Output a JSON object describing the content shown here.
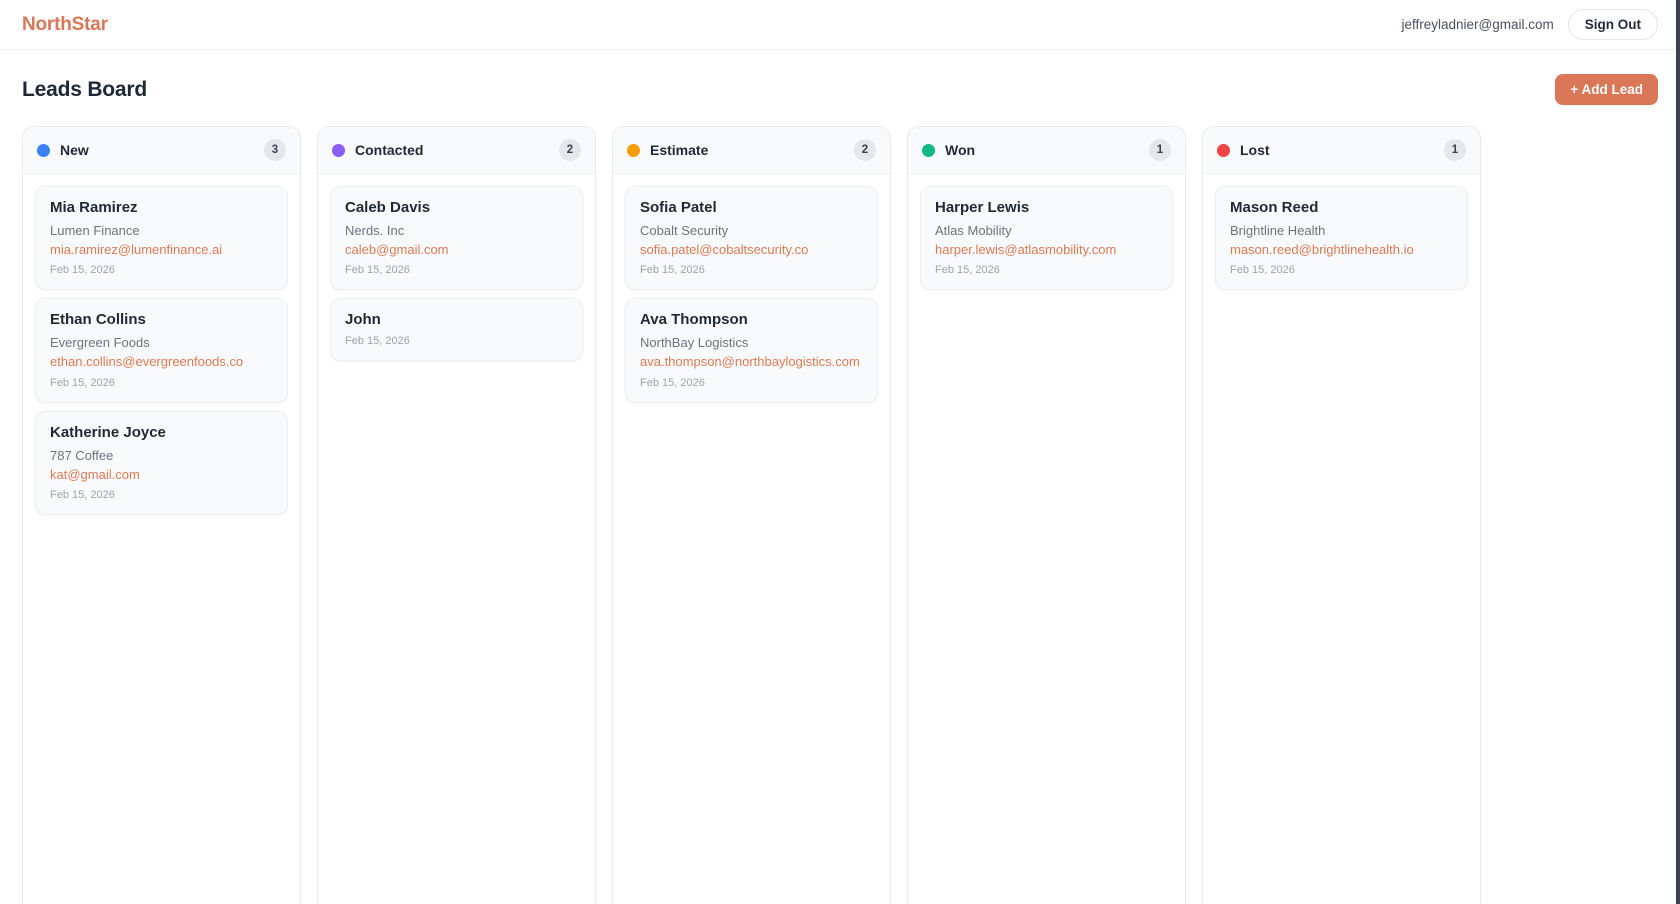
{
  "header": {
    "logo": "NorthStar",
    "user_email": "jeffreyladnier@gmail.com",
    "sign_out_label": "Sign Out"
  },
  "page": {
    "title": "Leads Board",
    "add_lead_label": "+ Add Lead"
  },
  "colors": {
    "accent": "#d97757",
    "email_link": "#dd7a54",
    "new_dot": "#3b82f6",
    "contacted_dot": "#8b5cf6",
    "estimate_dot": "#f59e0b",
    "won_dot": "#10b981",
    "lost_dot": "#ef4444",
    "badge_bg": "#e5e7eb"
  },
  "board": {
    "columns": [
      {
        "label": "New",
        "count": "3",
        "dot_color": "#3b82f6",
        "cards": [
          {
            "name": "Mia Ramirez",
            "company": "Lumen Finance",
            "email": "mia.ramirez@lumenfinance.ai",
            "date": "Feb 15, 2026"
          },
          {
            "name": "Ethan Collins",
            "company": "Evergreen Foods",
            "email": "ethan.collins@evergreenfoods.co",
            "date": "Feb 15, 2026"
          },
          {
            "name": "Katherine Joyce",
            "company": "787 Coffee",
            "email": "kat@gmail.com",
            "date": "Feb 15, 2026"
          }
        ]
      },
      {
        "label": "Contacted",
        "count": "2",
        "dot_color": "#8b5cf6",
        "cards": [
          {
            "name": "Caleb Davis",
            "company": "Nerds. Inc",
            "email": "caleb@gmail.com",
            "date": "Feb 15, 2026"
          },
          {
            "name": "John",
            "company": null,
            "email": null,
            "date": "Feb 15, 2026"
          }
        ]
      },
      {
        "label": "Estimate",
        "count": "2",
        "dot_color": "#f59e0b",
        "cards": [
          {
            "name": "Sofia Patel",
            "company": "Cobalt Security",
            "email": "sofia.patel@cobaltsecurity.co",
            "date": "Feb 15, 2026"
          },
          {
            "name": "Ava Thompson",
            "company": "NorthBay Logistics",
            "email": "ava.thompson@northbaylogistics.com",
            "date": "Feb 15, 2026"
          }
        ]
      },
      {
        "label": "Won",
        "count": "1",
        "dot_color": "#10b981",
        "cards": [
          {
            "name": "Harper Lewis",
            "company": "Atlas Mobility",
            "email": "harper.lewis@atlasmobility.com",
            "date": "Feb 15, 2026"
          }
        ]
      },
      {
        "label": "Lost",
        "count": "1",
        "dot_color": "#ef4444",
        "cards": [
          {
            "name": "Mason Reed",
            "company": "Brightline Health",
            "email": "mason.reed@brightlinehealth.io",
            "date": "Feb 15, 2026"
          }
        ]
      }
    ]
  }
}
